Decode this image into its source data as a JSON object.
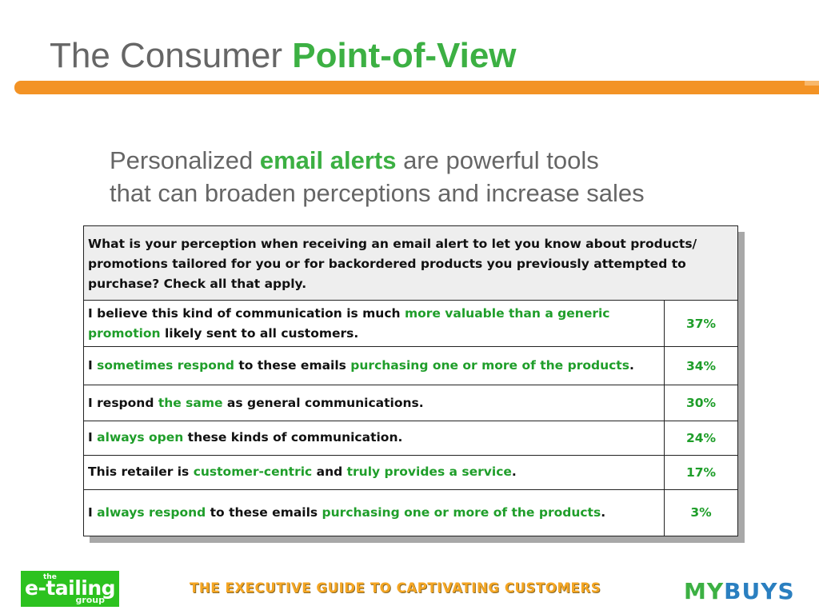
{
  "title": {
    "plain": "The Consumer ",
    "highlight": "Point-of-View"
  },
  "subtitle": {
    "line1_pre": "Personalized ",
    "line1_hl": "email alerts",
    "line1_post": " are powerful tools",
    "line2": "that can broaden perceptions and increase sales"
  },
  "table": {
    "question": "What is your perception when receiving an email alert to let you know about products/ promotions tailored for you or for backordered products you previously attempted to purchase? Check all that apply.",
    "rows": [
      {
        "pre": "I believe this kind of communication is much ",
        "hl": "more valuable than a generic promotion",
        "post": " likely sent to all customers.",
        "hl2": "",
        "post2": "",
        "pct": "37%"
      },
      {
        "pre": "I ",
        "hl": "sometimes respond",
        "post": " to these emails ",
        "hl2": "purchasing one or more of the products",
        "post2": ".",
        "pct": "34%"
      },
      {
        "pre": "I respond ",
        "hl": "the same",
        "post": " as general communications.",
        "hl2": "",
        "post2": "",
        "pct": "30%"
      },
      {
        "pre": "I ",
        "hl": "always open",
        "post": " these kinds of communication.",
        "hl2": "",
        "post2": "",
        "pct": "24%"
      },
      {
        "pre": "This retailer is ",
        "hl": "customer-centric",
        "post": " and ",
        "hl2": "truly provides a service",
        "post2": ".",
        "pct": "17%"
      },
      {
        "pre": "I ",
        "hl": "always respond",
        "post": " to these emails ",
        "hl2": "purchasing one or more of the products",
        "post2": ".",
        "pct": "3%"
      }
    ]
  },
  "footer": {
    "tagline": "THE EXECUTIVE GUIDE TO CAPTIVATING CUSTOMERS",
    "logo_left": {
      "small": "the",
      "main": "e-tailing",
      "sub": "group"
    },
    "logo_right": {
      "part1": "MY",
      "part2": "BUYS"
    }
  },
  "colors": {
    "accent_green": "#3cb043",
    "bar_orange": "#f39325",
    "footer_gold": "#f5a623",
    "mybuys_blue": "#2a7fc0"
  }
}
